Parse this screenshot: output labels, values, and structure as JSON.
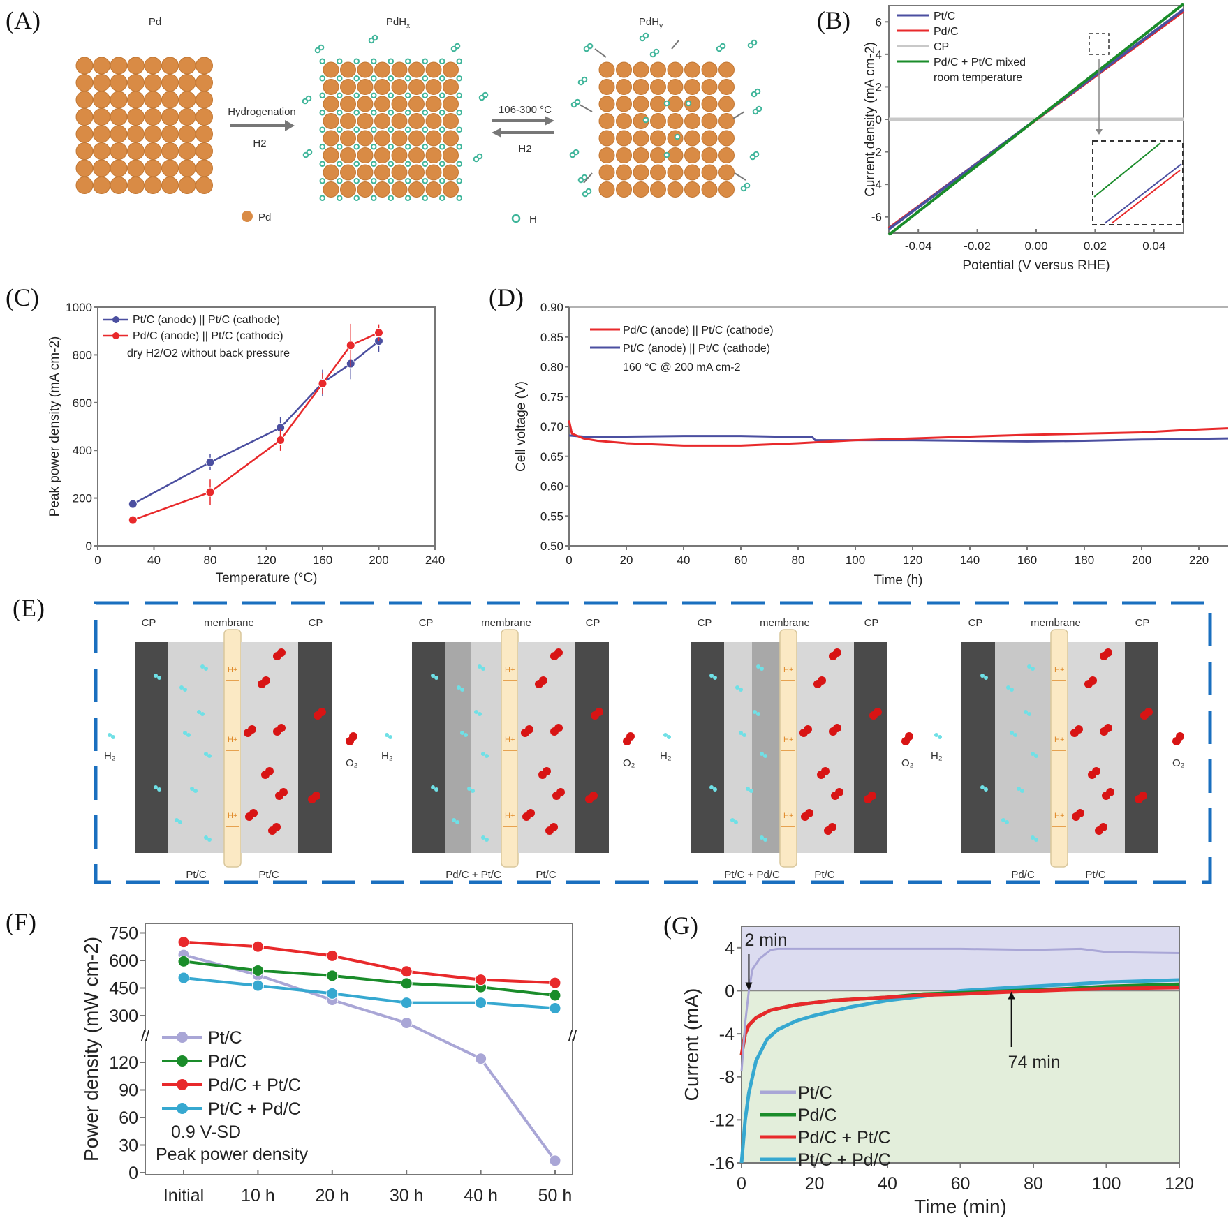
{
  "panels": {
    "A": {
      "label": "(A)"
    },
    "B": {
      "label": "(B)"
    },
    "C": {
      "label": "(C)"
    },
    "D": {
      "label": "(D)"
    },
    "E": {
      "label": "(E)"
    },
    "F": {
      "label": "(F)"
    },
    "G": {
      "label": "(G)"
    }
  },
  "colors": {
    "pd_atom": "#d98b45",
    "h_atom": "#3fb59a",
    "blue_series": "#4b4fa0",
    "red_series": "#e8292b",
    "green_series": "#1a8c2a",
    "gray_series": "#c8c8c8",
    "lavender_series": "#a9a6d6",
    "cyan_series": "#36a8d0",
    "dash_border": "#1a6fbf",
    "cp_plate": "#4a4a4a",
    "membrane": "#fbe9c4",
    "o2": "#d81414",
    "h2": "#6fe0e6",
    "g_upper_fill": "#dcdcf0",
    "g_lower_fill": "#e3eedb"
  },
  "diagram_A": {
    "titles": [
      "Pd",
      "PdHx",
      "PdHy"
    ],
    "title_sub": [
      "",
      "x",
      "y"
    ],
    "arrow1_top": "Hydrogenation",
    "arrow1_bottom": "H2",
    "arrow2_top": "106-300 °C",
    "arrow2_bottom": "H2",
    "legend_pd": "Pd",
    "legend_h": "H"
  },
  "diagram_E": {
    "cells": [
      {
        "left_top": "CP",
        "mid_top": "membrane",
        "right_top": "CP",
        "anode": "Pt/C",
        "cathode": "Pt/C",
        "gas_in": "H2",
        "gas_out": "O2",
        "anode_layer": "single"
      },
      {
        "left_top": "CP",
        "mid_top": "membrane",
        "right_top": "CP",
        "anode": "Pd/C + Pt/C",
        "cathode": "Pt/C",
        "gas_in": "H2",
        "gas_out": "O2",
        "anode_layer": "dark-outer"
      },
      {
        "left_top": "CP",
        "mid_top": "membrane",
        "right_top": "CP",
        "anode": "Pt/C + Pd/C",
        "cathode": "Pt/C",
        "gas_in": "H2",
        "gas_out": "O2",
        "anode_layer": "dark-inner"
      },
      {
        "left_top": "CP",
        "mid_top": "membrane",
        "right_top": "CP",
        "anode": "Pd/C",
        "cathode": "Pt/C",
        "gas_in": "H2",
        "gas_out": "O2",
        "anode_layer": "uniform-dark"
      }
    ],
    "proton_label": "H+"
  },
  "chart_data": [
    {
      "id": "B",
      "type": "line",
      "xlabel": "Potential (V versus RHE)",
      "ylabel": "Current density (mA cm-2)",
      "xlim": [
        -0.05,
        0.05
      ],
      "ylim": [
        -7,
        7
      ],
      "xticks": [
        -0.04,
        -0.02,
        0.0,
        0.02,
        0.04
      ],
      "xtick_labels": [
        "-0.04",
        "-0.02",
        "0.00",
        "0.02",
        "0.04"
      ],
      "yticks": [
        -6,
        -4,
        -2,
        0,
        2,
        4,
        6
      ],
      "annotation": "room temperature",
      "legend_position": "top-left",
      "series": [
        {
          "name": "Pt/C",
          "color": "#4b4fa0",
          "x": [
            -0.05,
            0.05
          ],
          "y": [
            -6.75,
            6.75
          ]
        },
        {
          "name": "Pd/C",
          "color": "#e8292b",
          "x": [
            -0.05,
            0.05
          ],
          "y": [
            -6.7,
            6.65
          ]
        },
        {
          "name": "CP",
          "color": "#c8c8c8",
          "x": [
            -0.05,
            0.05
          ],
          "y": [
            0,
            0
          ]
        },
        {
          "name": "Pd/C + Pt/C mixed",
          "color": "#1a8c2a",
          "x": [
            -0.05,
            0.05
          ],
          "y": [
            -7.1,
            7.1
          ]
        }
      ],
      "inset": {
        "note": "zoom of region near 0.03 V, 4.5 mA cm-2",
        "order_top_to_bottom": [
          "Pd/C + Pt/C mixed",
          "Pt/C",
          "Pd/C"
        ]
      }
    },
    {
      "id": "C",
      "type": "line",
      "xlabel": "Temperature (°C)",
      "ylabel": "Peak power density (mA cm-2)",
      "xlim": [
        0,
        240
      ],
      "ylim": [
        0,
        1000
      ],
      "xticks": [
        0,
        40,
        80,
        120,
        160,
        200,
        240
      ],
      "yticks": [
        0,
        200,
        400,
        600,
        800,
        1000
      ],
      "annotation": "dry H2/O2  without back pressure",
      "legend_position": "top-left",
      "series": [
        {
          "name": "Pt/C (anode) || Pt/C (cathode)",
          "color": "#4b4fa0",
          "x": [
            25,
            80,
            130,
            160,
            180,
            200
          ],
          "y": [
            175,
            350,
            495,
            683,
            763,
            858
          ],
          "err": [
            15,
            33,
            45,
            55,
            65,
            45
          ]
        },
        {
          "name": "Pd/C (anode) || Pt/C (cathode)",
          "color": "#e8292b",
          "x": [
            25,
            80,
            130,
            160,
            180,
            200
          ],
          "y": [
            108,
            225,
            443,
            680,
            840,
            893
          ],
          "err": [
            15,
            55,
            45,
            45,
            90,
            35
          ]
        }
      ]
    },
    {
      "id": "D",
      "type": "line",
      "xlabel": "Time (h)",
      "ylabel": "Cell voltage (V)",
      "xlim": [
        0,
        230
      ],
      "ylim": [
        0.5,
        0.9
      ],
      "xticks": [
        0,
        20,
        40,
        60,
        80,
        100,
        120,
        140,
        160,
        180,
        200,
        220
      ],
      "yticks": [
        0.5,
        0.55,
        0.6,
        0.65,
        0.7,
        0.75,
        0.8,
        0.85,
        0.9
      ],
      "ytick_labels": [
        "0.50",
        "0.55",
        "0.60",
        "0.65",
        "0.70",
        "0.75",
        "0.80",
        "0.85",
        "0.90"
      ],
      "annotation": "160 °C @ 200 mA cm-2",
      "legend_position": "top-left",
      "series": [
        {
          "name": "Pd/C (anode) || Pt/C (cathode)",
          "color": "#e8292b",
          "x": [
            0,
            1,
            5,
            10,
            20,
            40,
            60,
            80,
            100,
            120,
            140,
            160,
            180,
            200,
            215,
            230
          ],
          "y": [
            0.71,
            0.688,
            0.68,
            0.676,
            0.672,
            0.668,
            0.668,
            0.672,
            0.677,
            0.68,
            0.683,
            0.686,
            0.688,
            0.69,
            0.694,
            0.697
          ]
        },
        {
          "name": "Pt/C (anode) || Pt/C (cathode)",
          "color": "#4b4fa0",
          "x": [
            0,
            5,
            20,
            40,
            60,
            85,
            86,
            100,
            120,
            140,
            160,
            180,
            200,
            230
          ],
          "y": [
            0.685,
            0.683,
            0.683,
            0.684,
            0.684,
            0.682,
            0.677,
            0.677,
            0.677,
            0.676,
            0.675,
            0.676,
            0.678,
            0.68
          ]
        }
      ]
    },
    {
      "id": "F",
      "type": "line",
      "xlabel": "",
      "ylabel": "Power density (mW cm-2)",
      "categories": [
        "Initial",
        "10 h",
        "20 h",
        "30 h",
        "40 h",
        "50 h"
      ],
      "y_axis_break": true,
      "yticks_lower": [
        0,
        30,
        60,
        90,
        120
      ],
      "yticks_upper": [
        300,
        450,
        600,
        750
      ],
      "annotation": [
        "0.9 V-SD",
        "Peak power density"
      ],
      "legend_position": "lower-left",
      "series": [
        {
          "name": "Pt/C",
          "color": "#a9a6d6",
          "values": [
            630,
            520,
            385,
            260,
            124,
            13
          ]
        },
        {
          "name": "Pd/C",
          "color": "#1a8c2a",
          "values": [
            595,
            545,
            517,
            475,
            455,
            410
          ]
        },
        {
          "name": "Pd/C + Pt/C",
          "color": "#e8292b",
          "values": [
            700,
            675,
            625,
            540,
            495,
            478
          ]
        },
        {
          "name": "Pt/C + Pd/C",
          "color": "#36a8d0",
          "values": [
            505,
            463,
            420,
            370,
            370,
            340
          ]
        }
      ]
    },
    {
      "id": "G",
      "type": "line",
      "xlabel": "Time (min)",
      "ylabel": "Current (mA)",
      "xlim": [
        0,
        120
      ],
      "ylim": [
        -16,
        6
      ],
      "xticks": [
        0,
        20,
        40,
        60,
        80,
        100,
        120
      ],
      "yticks": [
        -16,
        -12,
        -8,
        -4,
        0,
        4
      ],
      "annotations": [
        {
          "text": "2 min",
          "x": 2,
          "y": 0
        },
        {
          "text": "74 min",
          "x": 74,
          "y": 0
        }
      ],
      "legend_position": "lower-left",
      "series": [
        {
          "name": "Pt/C",
          "color": "#a9a6d6",
          "x": [
            0,
            1,
            2,
            3,
            5,
            8,
            10,
            20,
            40,
            60,
            80,
            93,
            100,
            120
          ],
          "y": [
            -7.5,
            -3,
            0,
            2,
            3,
            3.8,
            3.9,
            3.9,
            3.9,
            3.9,
            3.8,
            3.9,
            3.6,
            3.5
          ]
        },
        {
          "name": "Pd/C",
          "color": "#1a8c2a",
          "x": [
            0,
            1,
            2,
            4,
            8,
            15,
            25,
            40,
            50,
            60,
            74,
            90,
            100,
            120
          ],
          "y": [
            -6,
            -4,
            -3.2,
            -2.5,
            -1.8,
            -1.3,
            -0.9,
            -0.6,
            -0.3,
            -0.2,
            0,
            0.2,
            0.4,
            0.6
          ]
        },
        {
          "name": "Pd/C + Pt/C",
          "color": "#e8292b",
          "x": [
            0,
            1,
            2,
            4,
            8,
            15,
            25,
            40,
            50,
            60,
            74,
            90,
            100,
            120
          ],
          "y": [
            -6,
            -4,
            -3.2,
            -2.5,
            -1.8,
            -1.3,
            -0.9,
            -0.6,
            -0.4,
            -0.3,
            -0.1,
            0.1,
            0.2,
            0.3
          ]
        },
        {
          "name": "Pt/C + Pd/C",
          "color": "#36a8d0",
          "x": [
            0,
            1,
            2,
            4,
            7,
            10,
            15,
            20,
            30,
            40,
            50,
            60,
            74,
            90,
            100,
            120
          ],
          "y": [
            -16,
            -12,
            -9.5,
            -6.5,
            -4.5,
            -3.6,
            -2.8,
            -2.3,
            -1.5,
            -0.9,
            -0.5,
            0,
            0.3,
            0.6,
            0.8,
            1.0
          ]
        }
      ]
    }
  ]
}
